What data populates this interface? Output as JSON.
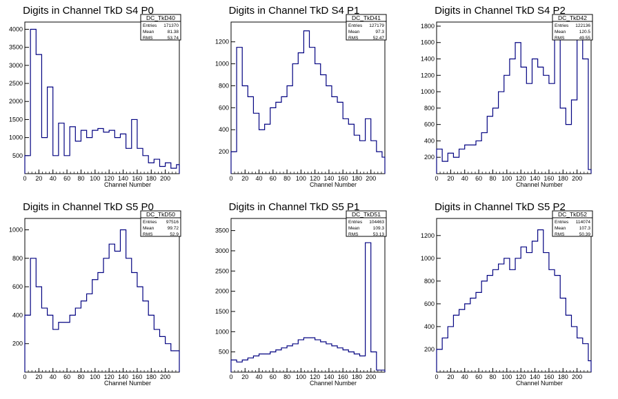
{
  "chart_data": [
    {
      "type": "histogram",
      "title": "Digits in Channel TkD S4 P0",
      "xlabel": "Channel Number",
      "ylabel": "",
      "xlim": [
        0,
        220
      ],
      "ylim": [
        0,
        4200
      ],
      "xticks": [
        0,
        20,
        40,
        60,
        80,
        100,
        120,
        140,
        160,
        180,
        200
      ],
      "yticks": [
        500,
        1000,
        1500,
        2000,
        2500,
        3000,
        3500,
        4000
      ],
      "stats": {
        "name": "DC_TkD40",
        "entries": "171370",
        "mean": "81.38",
        "rms": "53.74"
      },
      "series": [
        {
          "name": "DC_TkD40",
          "color": "#000080",
          "x": [
            0,
            8,
            16,
            24,
            32,
            40,
            48,
            56,
            64,
            72,
            80,
            88,
            96,
            104,
            112,
            120,
            128,
            136,
            144,
            152,
            160,
            168,
            176,
            184,
            192,
            200,
            208,
            216
          ],
          "y": [
            500,
            4000,
            3300,
            1000,
            2400,
            500,
            1400,
            500,
            1300,
            900,
            1200,
            1000,
            1200,
            1250,
            1150,
            1200,
            1000,
            1100,
            700,
            1500,
            700,
            500,
            300,
            400,
            200,
            300,
            150,
            250
          ]
        }
      ]
    },
    {
      "type": "histogram",
      "title": "Digits in Channel TkD S4 P1",
      "xlabel": "Channel Number",
      "ylabel": "",
      "xlim": [
        0,
        220
      ],
      "ylim": [
        0,
        1380
      ],
      "xticks": [
        0,
        20,
        40,
        60,
        80,
        100,
        120,
        140,
        160,
        180,
        200
      ],
      "yticks": [
        200,
        400,
        600,
        800,
        1000,
        1200
      ],
      "stats": {
        "name": "DC_TkD41",
        "entries": "127179",
        "mean": "97.3",
        "rms": "52.47"
      },
      "series": [
        {
          "name": "DC_TkD41",
          "color": "#000080",
          "x": [
            0,
            8,
            16,
            24,
            32,
            40,
            48,
            56,
            64,
            72,
            80,
            88,
            96,
            104,
            112,
            120,
            128,
            136,
            144,
            152,
            160,
            168,
            176,
            184,
            192,
            200,
            208,
            216
          ],
          "y": [
            200,
            1150,
            800,
            700,
            550,
            400,
            450,
            600,
            650,
            700,
            800,
            1000,
            1100,
            1300,
            1150,
            1000,
            900,
            800,
            700,
            650,
            500,
            450,
            350,
            300,
            500,
            300,
            200,
            150
          ]
        }
      ]
    },
    {
      "type": "histogram",
      "title": "Digits in Channel TkD S4 P2",
      "xlabel": "Channel Number",
      "ylabel": "",
      "xlim": [
        0,
        220
      ],
      "ylim": [
        0,
        1850
      ],
      "xticks": [
        0,
        20,
        40,
        60,
        80,
        100,
        120,
        140,
        160,
        180,
        200
      ],
      "yticks": [
        200,
        400,
        600,
        800,
        1000,
        1200,
        1400,
        1600,
        1800
      ],
      "stats": {
        "name": "DC_TkD42",
        "entries": "122136",
        "mean": "120.5",
        "rms": "49.55"
      },
      "series": [
        {
          "name": "DC_TkD42",
          "color": "#000080",
          "x": [
            0,
            8,
            16,
            24,
            32,
            40,
            48,
            56,
            64,
            72,
            80,
            88,
            96,
            104,
            112,
            120,
            128,
            136,
            144,
            152,
            160,
            168,
            176,
            184,
            192,
            200,
            208,
            216
          ],
          "y": [
            300,
            150,
            250,
            200,
            300,
            350,
            350,
            400,
            500,
            700,
            800,
            1000,
            1200,
            1400,
            1600,
            1300,
            1100,
            1400,
            1300,
            1200,
            1100,
            1700,
            800,
            600,
            900,
            1700,
            1400,
            50
          ]
        }
      ]
    },
    {
      "type": "histogram",
      "title": "Digits in Channel TkD S5 P0",
      "xlabel": "Channel Number",
      "ylabel": "",
      "xlim": [
        0,
        220
      ],
      "ylim": [
        0,
        1080
      ],
      "xticks": [
        0,
        20,
        40,
        60,
        80,
        100,
        120,
        140,
        160,
        180,
        200
      ],
      "yticks": [
        200,
        400,
        600,
        800,
        1000
      ],
      "stats": {
        "name": "DC_TkD50",
        "entries": "97516",
        "mean": "99.72",
        "rms": "52.9"
      },
      "series": [
        {
          "name": "DC_TkD50",
          "color": "#000080",
          "x": [
            0,
            8,
            16,
            24,
            32,
            40,
            48,
            56,
            64,
            72,
            80,
            88,
            96,
            104,
            112,
            120,
            128,
            136,
            144,
            152,
            160,
            168,
            176,
            184,
            192,
            200,
            208,
            216
          ],
          "y": [
            400,
            800,
            600,
            450,
            400,
            300,
            350,
            350,
            400,
            450,
            500,
            550,
            650,
            700,
            800,
            900,
            850,
            1000,
            800,
            700,
            600,
            500,
            400,
            300,
            250,
            200,
            150,
            150
          ]
        }
      ]
    },
    {
      "type": "histogram",
      "title": "Digits in Channel TkD S5 P1",
      "xlabel": "Channel Number",
      "ylabel": "",
      "xlim": [
        0,
        220
      ],
      "ylim": [
        0,
        3800
      ],
      "xticks": [
        0,
        20,
        40,
        60,
        80,
        100,
        120,
        140,
        160,
        180,
        200
      ],
      "yticks": [
        500,
        1000,
        1500,
        2000,
        2500,
        3000,
        3500
      ],
      "stats": {
        "name": "DC_TkD51",
        "entries": "104463",
        "mean": "109.3",
        "rms": "53.13"
      },
      "series": [
        {
          "name": "DC_TkD51",
          "color": "#000080",
          "x": [
            0,
            8,
            16,
            24,
            32,
            40,
            48,
            56,
            64,
            72,
            80,
            88,
            96,
            104,
            112,
            120,
            128,
            136,
            144,
            152,
            160,
            168,
            176,
            184,
            192,
            200,
            208,
            216
          ],
          "y": [
            300,
            250,
            300,
            350,
            400,
            450,
            450,
            500,
            550,
            600,
            650,
            700,
            800,
            850,
            850,
            800,
            750,
            700,
            650,
            600,
            550,
            500,
            450,
            400,
            3200,
            500,
            50,
            50
          ]
        }
      ]
    },
    {
      "type": "histogram",
      "title": "Digits in Channel TkD S5 P2",
      "xlabel": "Channel Number",
      "ylabel": "",
      "xlim": [
        0,
        220
      ],
      "ylim": [
        0,
        1350
      ],
      "xticks": [
        0,
        20,
        40,
        60,
        80,
        100,
        120,
        140,
        160,
        180,
        200
      ],
      "yticks": [
        200,
        400,
        600,
        800,
        1000,
        1200
      ],
      "stats": {
        "name": "DC_TkD52",
        "entries": "114074",
        "mean": "107.3",
        "rms": "50.39"
      },
      "series": [
        {
          "name": "DC_TkD52",
          "color": "#000080",
          "x": [
            0,
            8,
            16,
            24,
            32,
            40,
            48,
            56,
            64,
            72,
            80,
            88,
            96,
            104,
            112,
            120,
            128,
            136,
            144,
            152,
            160,
            168,
            176,
            184,
            192,
            200,
            208,
            216
          ],
          "y": [
            200,
            300,
            400,
            500,
            550,
            600,
            650,
            700,
            800,
            850,
            900,
            950,
            1000,
            900,
            1000,
            1100,
            1050,
            1150,
            1250,
            1050,
            900,
            850,
            650,
            500,
            400,
            300,
            250,
            100
          ]
        }
      ]
    }
  ]
}
